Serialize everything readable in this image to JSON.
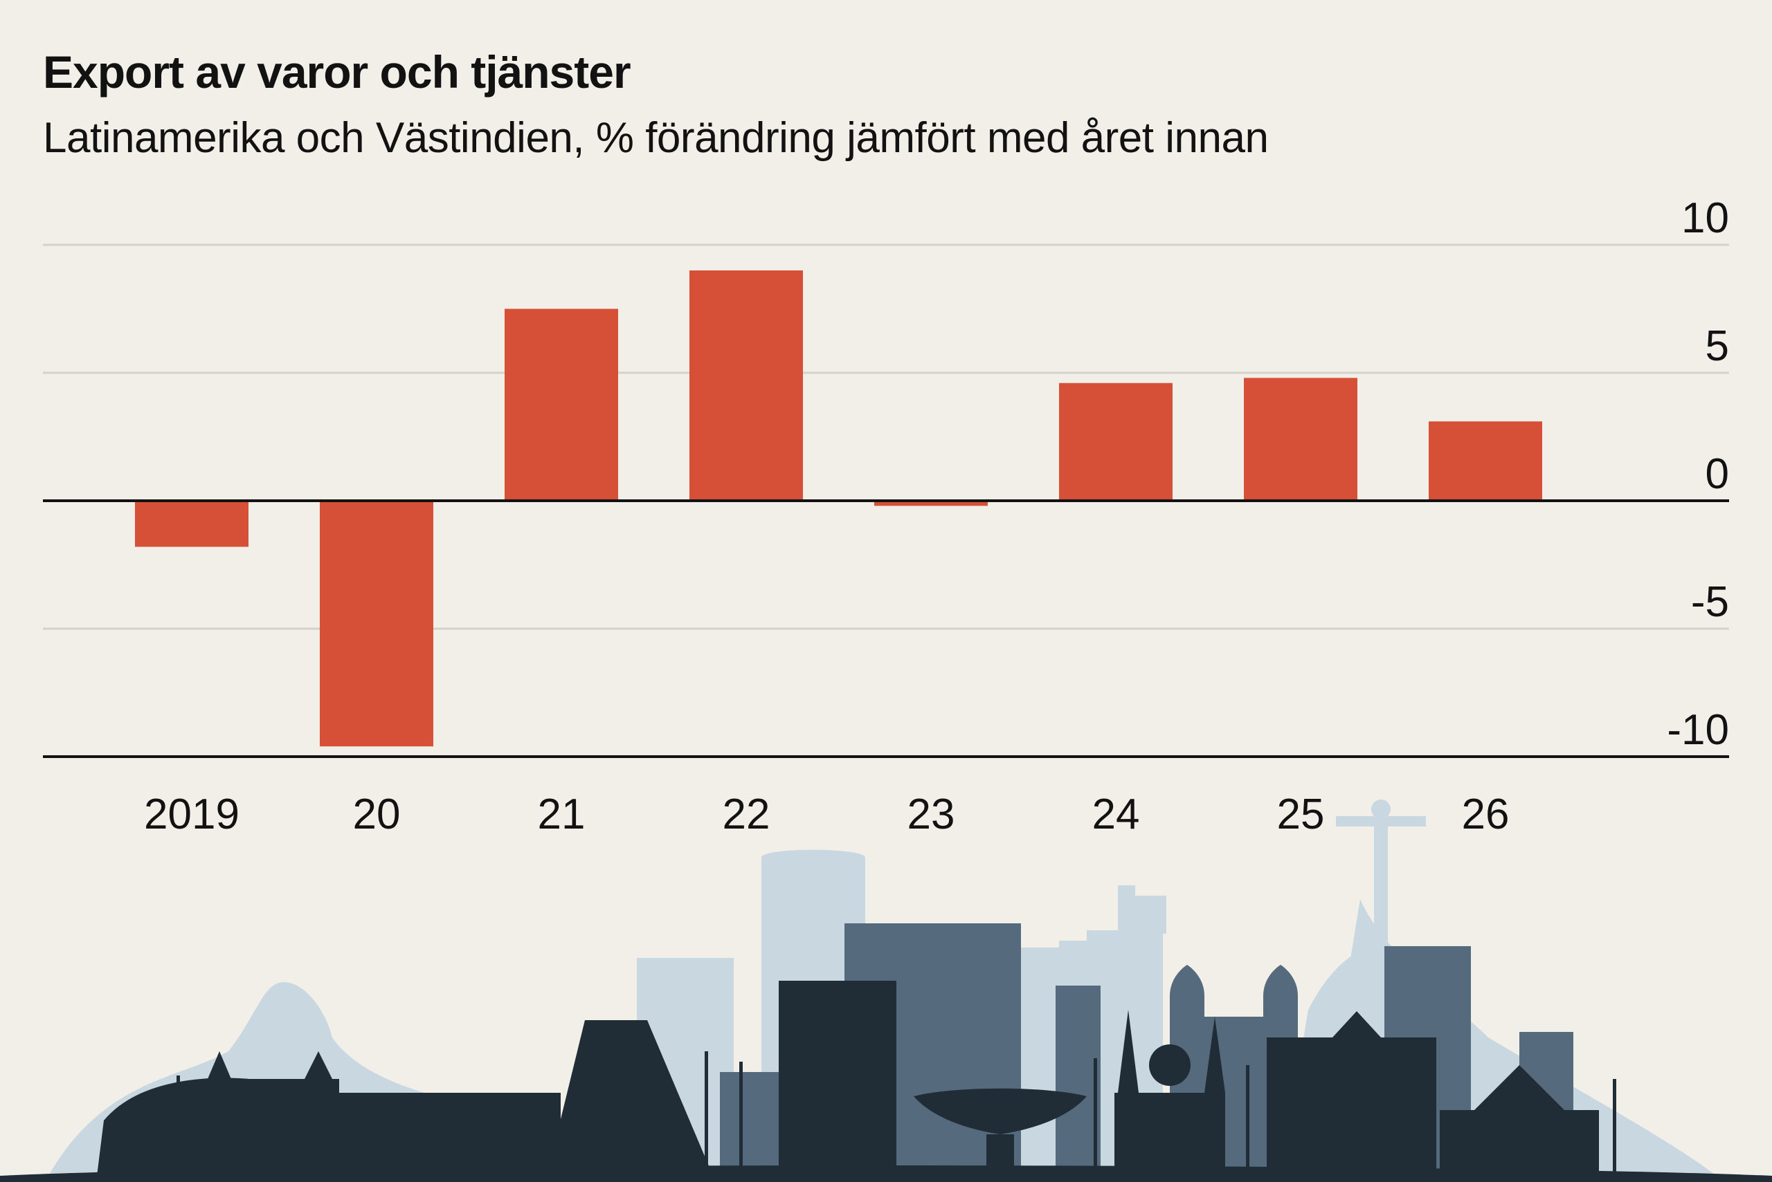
{
  "chart_data": {
    "type": "bar",
    "title": "Export av varor och tjänster",
    "subtitle": "Latinamerika och Västindien, % förändring jämfört med året innan",
    "categories": [
      "2019",
      "20",
      "21",
      "22",
      "23",
      "24",
      "25",
      "26"
    ],
    "values": [
      -1.8,
      -9.6,
      7.5,
      9.0,
      -0.2,
      4.6,
      4.8,
      3.1
    ],
    "ylim": [
      -10,
      10
    ],
    "yticks": [
      10,
      5,
      0,
      -5,
      -10
    ],
    "ytick_labels": [
      "10",
      "5",
      "0",
      "-5",
      "-10"
    ],
    "xlabel": "",
    "ylabel": "",
    "grid": true,
    "y_axis_side": "right"
  },
  "colors": {
    "bar": "#d64f37",
    "background": "#f1efe8",
    "gridline": "#d4d2c9",
    "axis": "#121212",
    "skyline_light": "#c9d7e1",
    "skyline_mid": "#566a7e",
    "skyline_dark": "#202d37"
  },
  "decoration": {
    "icon": "rio-skyline-illustration"
  }
}
